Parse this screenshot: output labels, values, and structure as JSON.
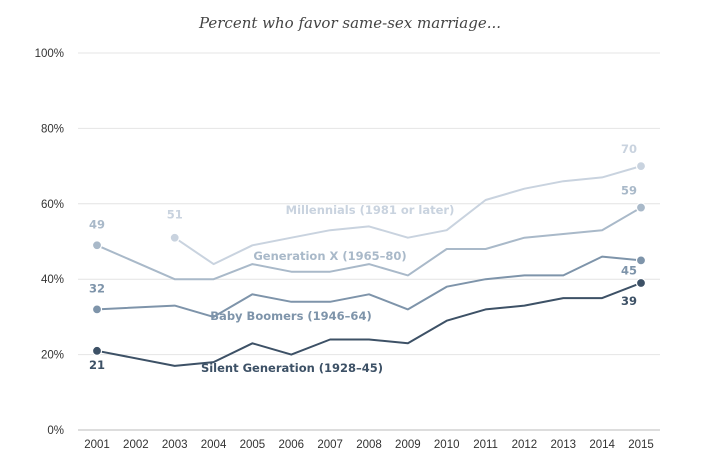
{
  "chart_data": {
    "type": "line",
    "title": "Percent who favor same-sex marriage...",
    "x": [
      2001,
      2002,
      2003,
      2004,
      2005,
      2006,
      2007,
      2008,
      2009,
      2010,
      2011,
      2012,
      2013,
      2014,
      2015
    ],
    "xlabels": [
      "2001",
      "2002",
      "2003",
      "2004",
      "2005",
      "2006",
      "2007",
      "2008",
      "2009",
      "2010",
      "2011",
      "2012",
      "2013",
      "2014",
      "2015"
    ],
    "yticks": [
      0,
      20,
      40,
      60,
      80,
      100
    ],
    "ytick_labels": [
      "0%",
      "20%",
      "40%",
      "60%",
      "80%",
      "100%"
    ],
    "ylim": [
      0,
      100
    ],
    "grid": true,
    "series": [
      {
        "name": "Millennials (1981 or later)",
        "color": "#c9d3df",
        "x": [
          2003,
          2004,
          2005,
          2006,
          2007,
          2008,
          2009,
          2010,
          2011,
          2012,
          2013,
          2014,
          2015
        ],
        "values": [
          51,
          44,
          49,
          51,
          53,
          54,
          51,
          53,
          61,
          64,
          66,
          67,
          70
        ],
        "markers": [
          {
            "x": 2003,
            "y": 51,
            "label": "51"
          },
          {
            "x": 2015,
            "y": 70,
            "label": "70"
          }
        ]
      },
      {
        "name": "Generation X (1965–80)",
        "color": "#a9b9c9",
        "x": [
          2001,
          2003,
          2004,
          2005,
          2006,
          2007,
          2008,
          2009,
          2010,
          2011,
          2012,
          2013,
          2014,
          2015
        ],
        "values": [
          49,
          40,
          40,
          44,
          42,
          42,
          44,
          41,
          48,
          48,
          51,
          52,
          53,
          59
        ],
        "markers": [
          {
            "x": 2001,
            "y": 49,
            "label": "49"
          },
          {
            "x": 2015,
            "y": 59,
            "label": "59"
          }
        ]
      },
      {
        "name": "Baby Boomers (1946–64)",
        "color": "#7e94aa",
        "x": [
          2001,
          2003,
          2004,
          2005,
          2006,
          2007,
          2008,
          2009,
          2010,
          2011,
          2012,
          2013,
          2014,
          2015
        ],
        "values": [
          32,
          33,
          30,
          36,
          34,
          34,
          36,
          32,
          38,
          40,
          41,
          41,
          46,
          45
        ],
        "markers": [
          {
            "x": 2001,
            "y": 32,
            "label": "32"
          },
          {
            "x": 2015,
            "y": 45,
            "label": "45"
          }
        ]
      },
      {
        "name": "Silent Generation (1928–45)",
        "color": "#3d5166",
        "x": [
          2001,
          2003,
          2004,
          2005,
          2006,
          2007,
          2008,
          2009,
          2010,
          2011,
          2012,
          2013,
          2014,
          2015
        ],
        "values": [
          21,
          17,
          18,
          23,
          20,
          24,
          24,
          23,
          29,
          32,
          33,
          35,
          35,
          39
        ],
        "markers": [
          {
            "x": 2001,
            "y": 21,
            "label": "21"
          },
          {
            "x": 2015,
            "y": 39,
            "label": "39"
          }
        ]
      }
    ]
  }
}
